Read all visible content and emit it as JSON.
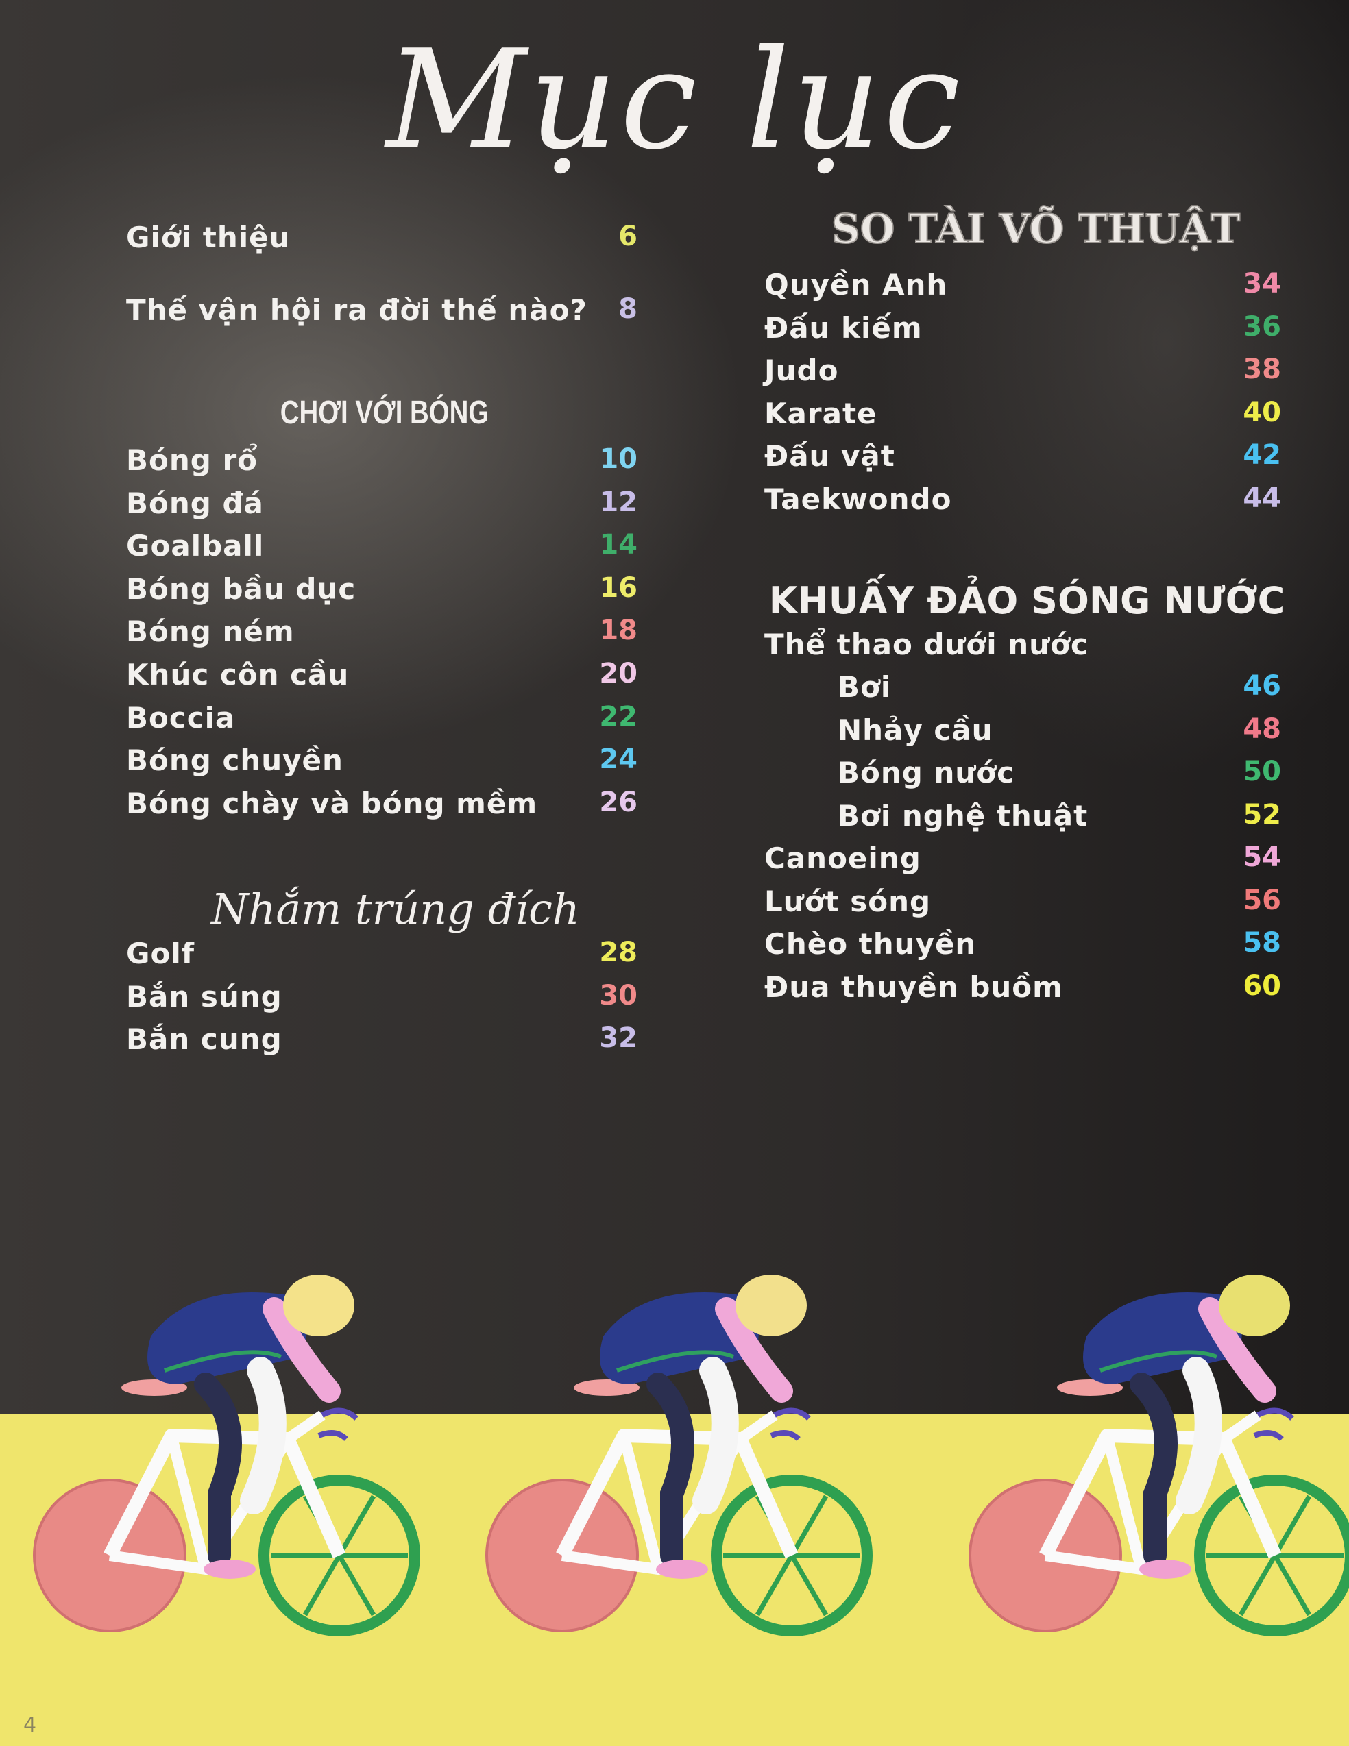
{
  "title": "Mục lục",
  "left": {
    "intro": [
      {
        "label": "Giới thiệu",
        "page": "6",
        "color": "#e6e86a"
      },
      {
        "label": "Thế vận hội ra đời thế nào?",
        "page": "8",
        "color": "#c9c0e6"
      }
    ],
    "section_ball": {
      "heading": "CHƠI VỚI BÓNG",
      "items": [
        {
          "label": "Bóng rổ",
          "page": "10",
          "color": "#7fd3f0"
        },
        {
          "label": "Bóng đá",
          "page": "12",
          "color": "#c8bde8"
        },
        {
          "label": "Goalball",
          "page": "14",
          "color": "#3fae6a"
        },
        {
          "label": "Bóng bầu dục",
          "page": "16",
          "color": "#eeec6a"
        },
        {
          "label": "Bóng ném",
          "page": "18",
          "color": "#f08a8a"
        },
        {
          "label": "Khúc côn cầu",
          "page": "20",
          "color": "#f0c8e6"
        },
        {
          "label": "Boccia",
          "page": "22",
          "color": "#3fb870"
        },
        {
          "label": "Bóng chuyền",
          "page": "24",
          "color": "#5ec8f0"
        },
        {
          "label": "Bóng chày và bóng mềm",
          "page": "26",
          "color": "#e6c8ec"
        }
      ]
    },
    "section_target": {
      "heading": "Nhắm trúng đích",
      "items": [
        {
          "label": "Golf",
          "page": "28",
          "color": "#eeec5a"
        },
        {
          "label": "Bắn súng",
          "page": "30",
          "color": "#f08a8a"
        },
        {
          "label": "Bắn cung",
          "page": "32",
          "color": "#c8bde8"
        }
      ]
    }
  },
  "right": {
    "section_martial": {
      "heading": "SO TÀI VÕ THUẬT",
      "items": [
        {
          "label": "Quyền Anh",
          "page": "34",
          "color": "#f08aa8"
        },
        {
          "label": "Đấu kiếm",
          "page": "36",
          "color": "#3fae6a"
        },
        {
          "label": "Judo",
          "page": "38",
          "color": "#f08a8a"
        },
        {
          "label": "Karate",
          "page": "40",
          "color": "#eeec4a"
        },
        {
          "label": "Đấu vật",
          "page": "42",
          "color": "#4ac0f0"
        },
        {
          "label": "Taekwondo",
          "page": "44",
          "color": "#c8bde8"
        }
      ]
    },
    "section_water": {
      "heading": "KHUẤY ĐẢO SÓNG NƯỚC",
      "subheading": "Thể thao dưới nước",
      "sub_items": [
        {
          "label": "Bơi",
          "page": "46",
          "color": "#4ac0f0"
        },
        {
          "label": "Nhảy cầu",
          "page": "48",
          "color": "#f07a8a"
        },
        {
          "label": "Bóng nước",
          "page": "50",
          "color": "#3fb870"
        },
        {
          "label": "Bơi nghệ thuật",
          "page": "52",
          "color": "#eeec4a"
        }
      ],
      "items": [
        {
          "label": "Canoeing",
          "page": "54",
          "color": "#f0a8d8"
        },
        {
          "label": "Lướt sóng",
          "page": "56",
          "color": "#f07a7a"
        },
        {
          "label": "Chèo thuyền",
          "page": "58",
          "color": "#4ac0f0"
        },
        {
          "label": "Đua thuyền buồm",
          "page": "60",
          "color": "#eeec3a"
        }
      ]
    }
  },
  "page_number": "4"
}
